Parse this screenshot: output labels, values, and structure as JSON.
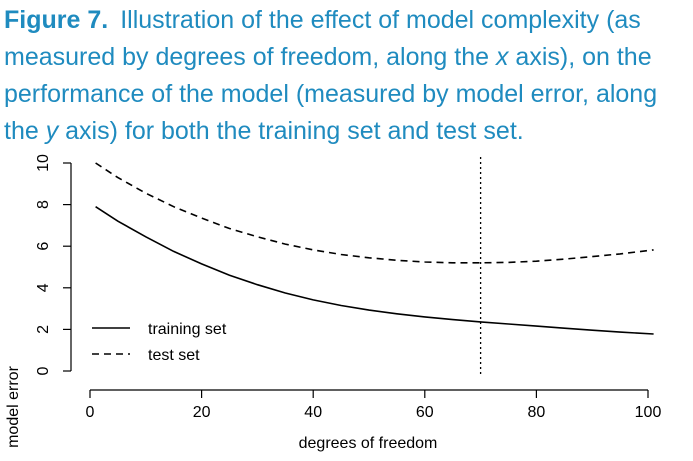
{
  "caption": {
    "figure_label": "Figure 7.",
    "text_before_x": "Illustration of the effect of model complexity (as measured by degrees of freedom, along the ",
    "x_var": "x",
    "text_between": " axis), on the performance of the model (measured by model error, along the ",
    "y_var": "y",
    "text_after_y": " axis) for both the training set and test set."
  },
  "chart_data": {
    "type": "line",
    "xlabel": "degrees of freedom",
    "ylabel": "model error",
    "xlim": [
      0,
      100
    ],
    "ylim": [
      0,
      10
    ],
    "xticks": [
      0,
      20,
      40,
      60,
      80,
      100
    ],
    "yticks": [
      0,
      2,
      4,
      6,
      8,
      10
    ],
    "grid": false,
    "legend_position": "bottom-left",
    "vline": 70,
    "series": [
      {
        "name": "training set",
        "style": "solid",
        "x": [
          1,
          5,
          10,
          15,
          20,
          25,
          30,
          35,
          40,
          45,
          50,
          55,
          60,
          65,
          70,
          75,
          80,
          85,
          90,
          95,
          101
        ],
        "y": [
          7.9,
          7.2,
          6.45,
          5.75,
          5.15,
          4.6,
          4.15,
          3.75,
          3.42,
          3.15,
          2.93,
          2.75,
          2.6,
          2.47,
          2.36,
          2.26,
          2.16,
          2.06,
          1.96,
          1.87,
          1.78
        ]
      },
      {
        "name": "test set",
        "style": "dashed",
        "x": [
          1,
          5,
          10,
          15,
          20,
          25,
          30,
          35,
          40,
          45,
          50,
          55,
          60,
          65,
          70,
          75,
          80,
          85,
          90,
          95,
          101
        ],
        "y": [
          10.0,
          9.3,
          8.55,
          7.9,
          7.35,
          6.85,
          6.45,
          6.1,
          5.82,
          5.6,
          5.44,
          5.32,
          5.24,
          5.2,
          5.2,
          5.22,
          5.28,
          5.38,
          5.5,
          5.63,
          5.82
        ]
      }
    ]
  }
}
